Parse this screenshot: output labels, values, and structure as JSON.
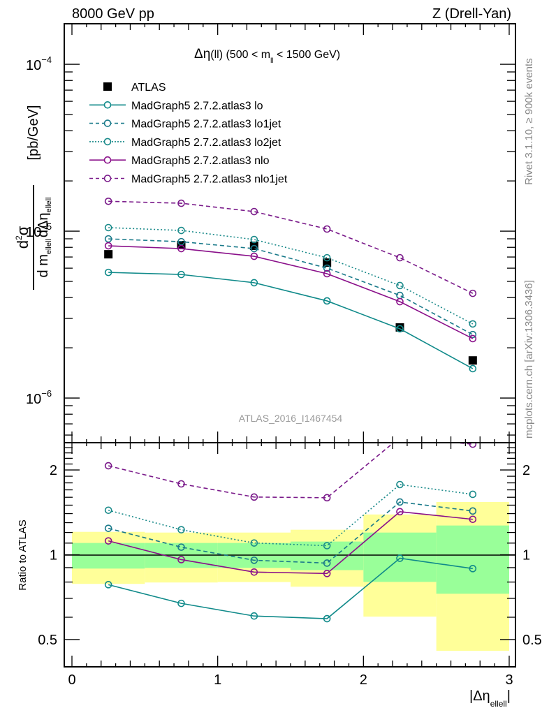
{
  "chart_data": [
    {
      "type": "line",
      "panel": "main",
      "title_left": "8000 GeV pp",
      "title_right": "Z (Drell-Yan)",
      "annotation": "Δη(ll) (500 < m_ll < 1500 GeV)",
      "annotation_parts": {
        "prefix": "Δη",
        "mid": "(ll) (500 < m",
        "sub": "ll",
        "suffix": " < 1500 GeV)"
      },
      "watermark": "ATLAS_2016_I1467454",
      "ylabel": "d²σ / d m_ellell dΔη_ellell [pb/GeV]",
      "ylabel_parts": {
        "num": "d",
        "num_sup": "2",
        "num_sigma": "σ",
        "den_d": "d m",
        "den_sub1": "ellell",
        "den_deta": "dΔη",
        "den_sub2": "ellell",
        "unit": "[pb/GeV]"
      },
      "yscale": "log",
      "ylim": [
        5.4e-07,
        0.000175
      ],
      "yticks": [
        {
          "value": 0.0001,
          "label": "10",
          "exp": "−4"
        },
        {
          "value": 1e-05,
          "label": "10",
          "exp": "−5"
        },
        {
          "value": 1e-06,
          "label": "10",
          "exp": "−6"
        }
      ],
      "xlim": [
        0,
        3
      ],
      "grid": false,
      "legend_position": "top-left",
      "x": [
        0.25,
        0.75,
        1.25,
        1.75,
        2.25,
        2.75
      ],
      "series": [
        {
          "name": "ATLAS",
          "style": "marker-square",
          "color": "#000000",
          "values": [
            7.27e-06,
            8.25e-06,
            8.17e-06,
            6.48e-06,
            2.65e-06,
            1.68e-06
          ]
        },
        {
          "name": "MadGraph5 2.7.2.atlas3 lo",
          "style": "solid",
          "color": "#108a8a",
          "values": [
            5.66e-06,
            5.5e-06,
            4.91e-06,
            3.82e-06,
            2.6e-06,
            1.5e-06
          ]
        },
        {
          "name": "MadGraph5 2.7.2.atlas3 lo1jet",
          "style": "dashed",
          "color": "#1a7a8a",
          "values": [
            8.99e-06,
            8.65e-06,
            7.86e-06,
            6e-06,
            4.12e-06,
            2.4e-06
          ]
        },
        {
          "name": "MadGraph5 2.7.2.atlas3 lo2jet",
          "style": "dotted",
          "color": "#1a8a8a",
          "values": [
            1.05e-05,
            1.01e-05,
            8.91e-06,
            6.93e-06,
            4.72e-06,
            2.78e-06
          ]
        },
        {
          "name": "MadGraph5 2.7.2.atlas3 nlo",
          "style": "solid",
          "color": "#8a108a",
          "values": [
            8.17e-06,
            7.86e-06,
            7.07e-06,
            5.56e-06,
            3.78e-06,
            2.27e-06
          ]
        },
        {
          "name": "MadGraph5 2.7.2.atlas3 nlo1jet",
          "style": "dashed",
          "color": "#7a1a8a",
          "values": [
            1.51e-05,
            1.47e-05,
            1.31e-05,
            1.03e-05,
            6.93e-06,
            4.24e-06
          ]
        }
      ]
    },
    {
      "type": "line",
      "panel": "ratio",
      "ylabel": "Ratio to ATLAS",
      "xlabel": "|Δη_ellell|",
      "xlabel_parts": {
        "main": "|Δη",
        "sub": "ellell",
        "end": "|"
      },
      "yscale": "log",
      "ylim": [
        0.4,
        2.5
      ],
      "yticks": [
        {
          "value": 2,
          "label": "2"
        },
        {
          "value": 1,
          "label": "1"
        },
        {
          "value": 0.5,
          "label": "0.5"
        }
      ],
      "xlim": [
        0,
        3
      ],
      "xticks": [
        {
          "value": 0,
          "label": "0"
        },
        {
          "value": 1,
          "label": "1"
        },
        {
          "value": 2,
          "label": "2"
        },
        {
          "value": 3,
          "label": "3"
        }
      ],
      "reference_line": 1,
      "bins": [
        [
          0,
          0.5
        ],
        [
          0.5,
          1.0
        ],
        [
          1.0,
          1.5
        ],
        [
          1.5,
          2.0
        ],
        [
          2.0,
          2.5
        ],
        [
          2.5,
          3.0
        ]
      ],
      "band_total": {
        "color": "#ffff99",
        "low": [
          0.788,
          0.797,
          0.8,
          0.77,
          0.603,
          0.456
        ],
        "high": [
          1.206,
          1.199,
          1.199,
          1.227,
          1.39,
          1.539
        ]
      },
      "band_stat": {
        "color": "#99ff99",
        "low": [
          0.893,
          0.898,
          0.898,
          0.882,
          0.801,
          0.727
        ],
        "high": [
          1.101,
          1.101,
          1.101,
          1.114,
          1.199,
          1.27
        ]
      },
      "x": [
        0.25,
        0.75,
        1.25,
        1.75,
        2.25,
        2.75
      ],
      "series": [
        {
          "name": "MadGraph5 2.7.2.atlas3 lo",
          "style": "solid",
          "color": "#108a8a",
          "values": [
            0.783,
            0.672,
            0.606,
            0.593,
            0.972,
            0.893
          ]
        },
        {
          "name": "MadGraph5 2.7.2.atlas3 lo1jet",
          "style": "dashed",
          "color": "#1a7a8a",
          "values": [
            1.241,
            1.064,
            0.956,
            0.934,
            1.539,
            1.43
          ]
        },
        {
          "name": "MadGraph5 2.7.2.atlas3 lo2jet",
          "style": "dotted",
          "color": "#1a8a8a",
          "values": [
            1.439,
            1.227,
            1.101,
            1.077,
            1.775,
            1.639
          ]
        },
        {
          "name": "MadGraph5 2.7.2.atlas3 nlo",
          "style": "solid",
          "color": "#8a108a",
          "values": [
            1.12,
            0.961,
            0.868,
            0.858,
            1.422,
            1.336
          ]
        },
        {
          "name": "MadGraph5 2.7.2.atlas3 nlo1jet",
          "style": "dashed",
          "color": "#7a1a8a",
          "values": [
            2.07,
            1.785,
            1.603,
            1.594,
            2.61,
            2.47
          ]
        }
      ]
    }
  ],
  "side_text": {
    "rivet": "Rivet 3.1.10, ≥ 900k events",
    "mcplots": "mcplots.cern.ch [arXiv:1306.3436]"
  }
}
